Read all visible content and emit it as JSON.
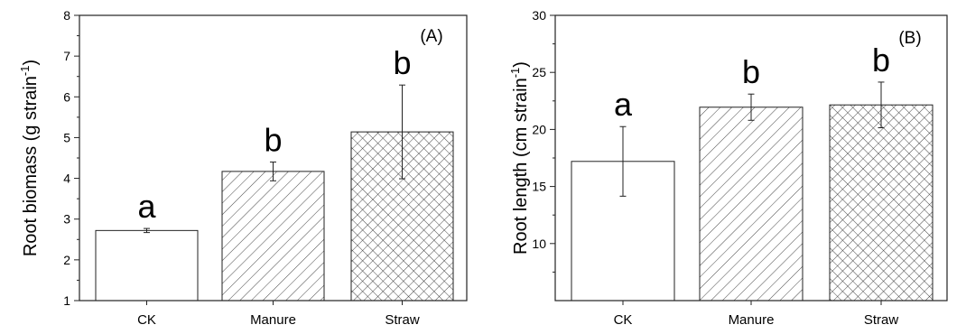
{
  "chart_data": [
    {
      "type": "bar",
      "panel_label": "(A)",
      "ylabel": "Root biomass (g strain",
      "ylabel_sup": "-1",
      "ylabel_end": ")",
      "ylim": [
        1,
        8
      ],
      "yticks": [
        1,
        2,
        3,
        4,
        5,
        6,
        7,
        8
      ],
      "categories": [
        "CK",
        "Manure",
        "Straw"
      ],
      "values": [
        2.72,
        4.17,
        5.14
      ],
      "errors": [
        0.05,
        0.23,
        1.15
      ],
      "significance": [
        "a",
        "b",
        "b"
      ],
      "patterns": [
        "none",
        "diagonal-hatch",
        "cross-hatch"
      ],
      "grid": false,
      "legend": "none"
    },
    {
      "type": "bar",
      "panel_label": "(B)",
      "ylabel": "Root length (cm strain",
      "ylabel_sup": "-1",
      "ylabel_end": ")",
      "ylim": [
        5,
        30
      ],
      "yticks": [
        10,
        15,
        20,
        25,
        30
      ],
      "categories": [
        "CK",
        "Manure",
        "Straw"
      ],
      "values": [
        17.2,
        21.95,
        22.15
      ],
      "errors": [
        3.05,
        1.15,
        2.0
      ],
      "significance": [
        "a",
        "b",
        "b"
      ],
      "patterns": [
        "none",
        "diagonal-hatch",
        "cross-hatch"
      ],
      "grid": false,
      "legend": "none"
    }
  ]
}
